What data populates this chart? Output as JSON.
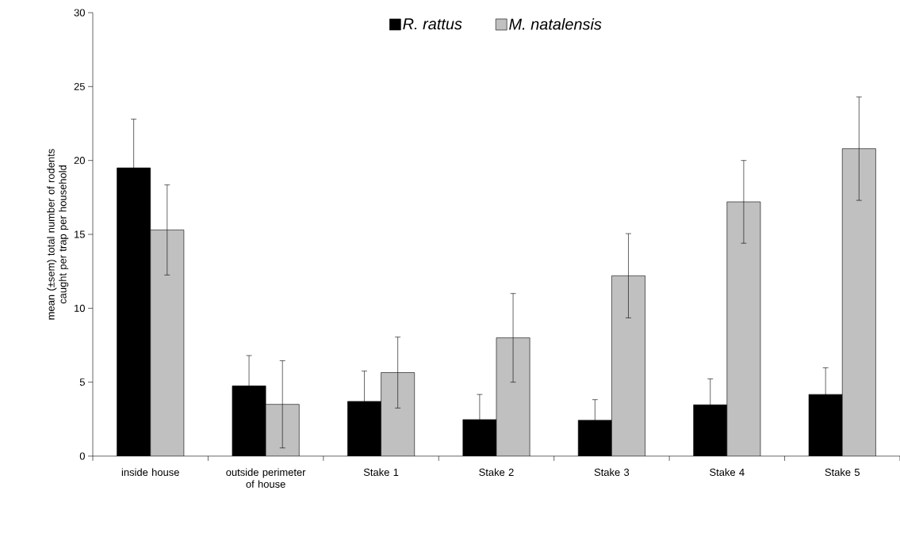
{
  "chart_data": {
    "type": "bar",
    "ylabel": "mean (±sem) total number of rodents caught per trap per household",
    "categories": [
      "inside house",
      "outside perimeter of house",
      "Stake 1",
      "Stake 2",
      "Stake 3",
      "Stake 4",
      "Stake 5"
    ],
    "series": [
      {
        "name": "R. rattus",
        "color": "#000000",
        "values": [
          19.5,
          4.75,
          3.7,
          2.47,
          2.42,
          3.47,
          4.17
        ],
        "errors": [
          3.3,
          2.05,
          2.05,
          1.7,
          1.4,
          1.75,
          1.8
        ]
      },
      {
        "name": "M. natalensis",
        "color": "#c0c0c0",
        "values": [
          15.3,
          3.5,
          5.65,
          8.0,
          12.2,
          17.2,
          20.8
        ],
        "errors": [
          3.05,
          2.95,
          2.4,
          3.0,
          2.85,
          2.8,
          3.5
        ]
      }
    ],
    "ylim": [
      0,
      30
    ],
    "yticks": [
      0,
      5,
      10,
      15,
      20,
      25,
      30
    ],
    "grid": false,
    "legend": "top"
  }
}
